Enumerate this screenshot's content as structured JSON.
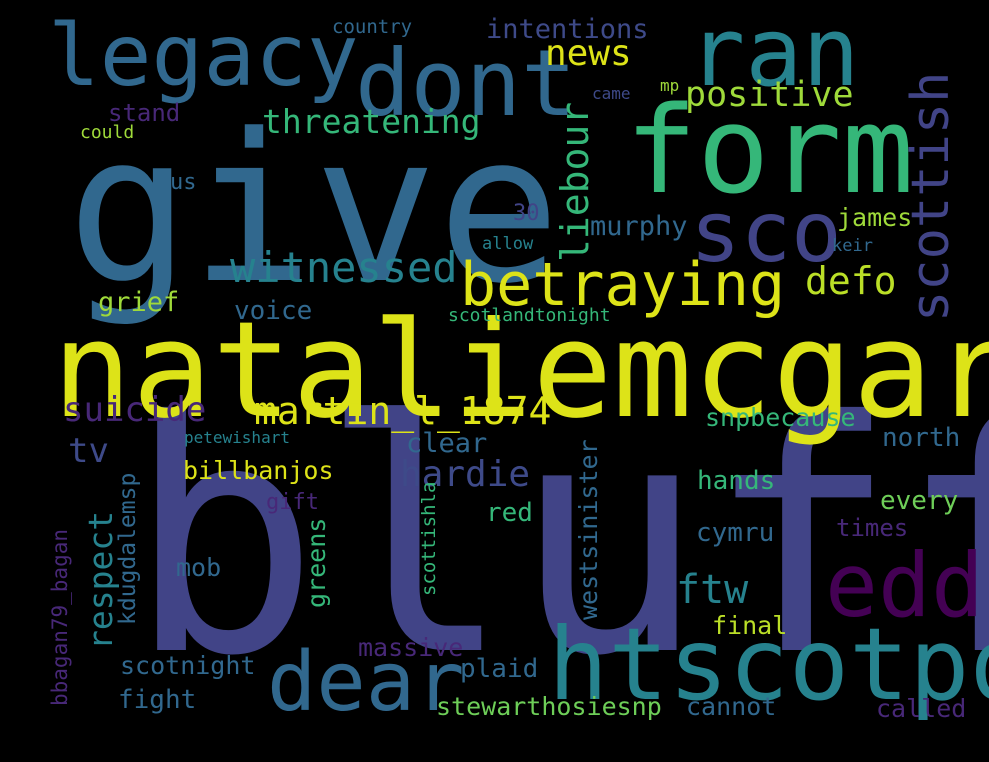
{
  "colors": {
    "background": "#000000",
    "navy": "#414487",
    "steel": "#31688E",
    "teal": "#26828E",
    "green": "#35B779",
    "lime": "#6ECE58",
    "yellow": "#DDE318",
    "purple": "#482878",
    "magenta": "#440154"
  },
  "words": {
    "bluff": "bluff",
    "nataliemcgarry": "nataliemcgarry",
    "give": "give",
    "form": "form",
    "ran": "ran",
    "dont": "dont",
    "legacy": "legacy",
    "htscotpol": "htscotpol",
    "dear": "dear",
    "edd": "edd",
    "sco": "sco",
    "betraying": "betraying",
    "scottish": "scottish",
    "witnessed": "witnessed",
    "martin": "martin_l_1874",
    "news": "news",
    "positive": "positive",
    "threatening": "threatening",
    "liebour": "liebour",
    "defo": "defo",
    "suicide": "suicide",
    "hardie": "hardie",
    "ftw": "ftw",
    "respect": "respect",
    "intentions": "intentions",
    "country": "country",
    "stand": "stand",
    "could": "could",
    "came": "came",
    "mp": "mp",
    "us": "us",
    "n30": "30",
    "murphy": "murphy",
    "james": "james",
    "allow": "allow",
    "keir": "keir",
    "grief": "grief",
    "voice": "voice",
    "scotlandtonight": "scotlandtonight",
    "tv": "tv",
    "clear": "clear",
    "snpbecause": "snpbecause",
    "petewishart": "petewishart",
    "north": "north",
    "kdugdalemsp": "kdugdalemsp",
    "billbanjos": "billbanjos",
    "westsinister": "westsinister",
    "hands": "hands",
    "gift": "gift",
    "every": "every",
    "red": "red",
    "times": "times",
    "cymru": "cymru",
    "bbagan": "bbagan79_bagan",
    "greens": "greens",
    "scottishla": "scottishla",
    "mob": "mob",
    "final": "final",
    "massive": "massive",
    "scotnight": "scotnight",
    "plaid": "plaid",
    "fight": "fight",
    "stewarthosiesnp": "stewarthosiesnp",
    "cannot": "cannot",
    "called": "called"
  }
}
